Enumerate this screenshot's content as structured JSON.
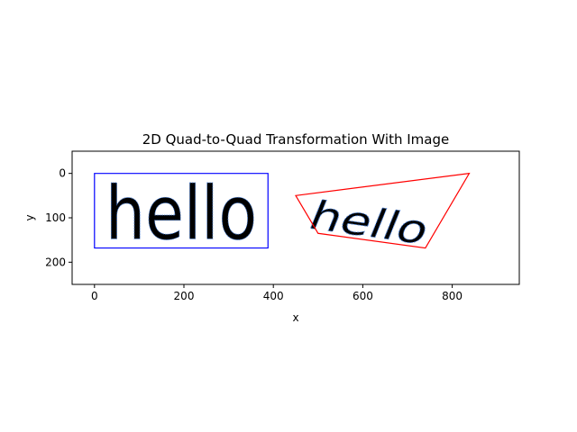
{
  "chart_data": {
    "type": "line",
    "title": "2D Quad-to-Quad Transformation With Image",
    "xlabel": "x",
    "ylabel": "y",
    "xlim": [
      -50,
      950
    ],
    "ylim": [
      250,
      -50
    ],
    "y_inverted": true,
    "xticks": [
      0,
      200,
      400,
      600,
      800
    ],
    "yticks": [
      0,
      100,
      200
    ],
    "grid": false,
    "series": [
      {
        "color": "#0000ff",
        "closed": true,
        "points": [
          [
            0,
            0
          ],
          [
            388,
            0
          ],
          [
            388,
            168
          ],
          [
            0,
            168
          ]
        ]
      },
      {
        "color": "#ff0000",
        "closed": true,
        "points": [
          [
            450,
            50
          ],
          [
            838,
            0
          ],
          [
            740,
            168
          ],
          [
            500,
            135
          ]
        ]
      }
    ],
    "images": [
      {
        "text": "hello",
        "outline_color": "#4a7fd4",
        "region": "source rectangle"
      },
      {
        "text": "hello",
        "outline_color": "#4a7fd4",
        "region": "destination quadrilateral"
      }
    ]
  }
}
